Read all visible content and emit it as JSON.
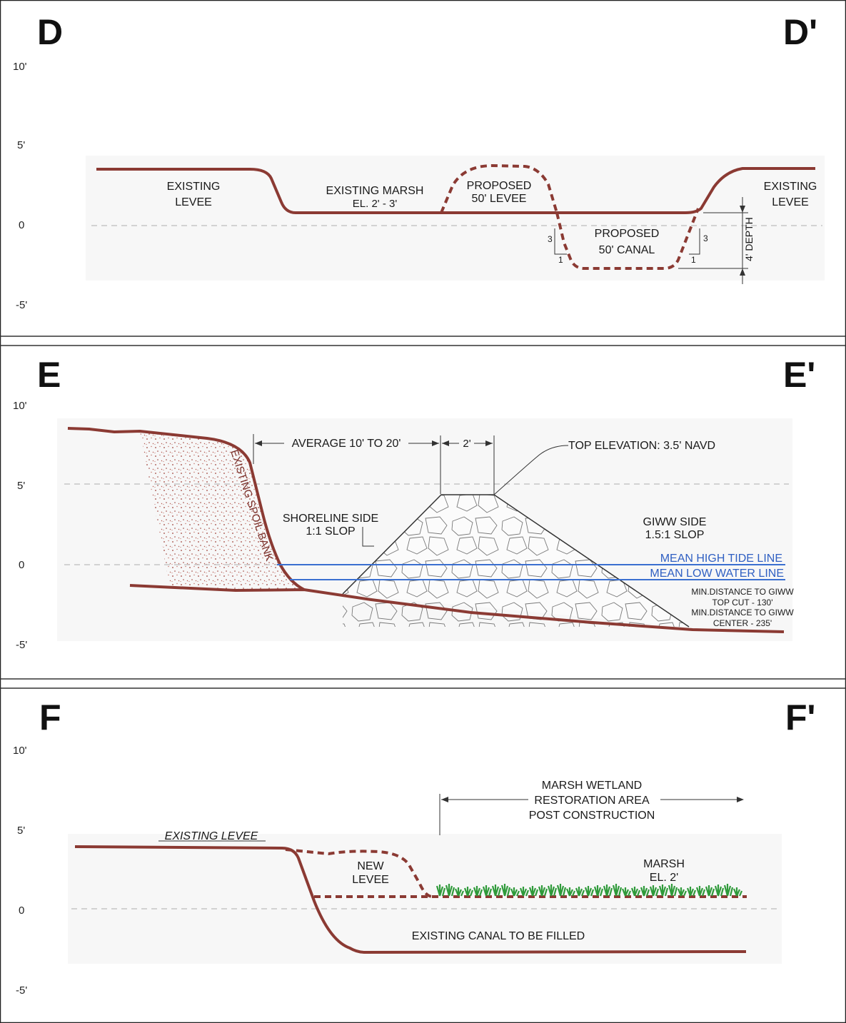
{
  "colors": {
    "profile": "#8b3a33",
    "water": "#3a6fd0",
    "datum": "#b9b9b9",
    "panel_bg": "#f7f7f7"
  },
  "axis_ticks": [
    "10'",
    "5'",
    "0",
    "-5'"
  ],
  "panel_d": {
    "label_left": "D",
    "label_right": "D'",
    "existing_levee_left": [
      "EXISTING",
      "LEVEE"
    ],
    "existing_marsh": [
      "EXISTING MARSH",
      "EL. 2' - 3'"
    ],
    "proposed_levee": [
      "PROPOSED",
      "50' LEVEE"
    ],
    "proposed_canal": [
      "PROPOSED",
      "50' CANAL"
    ],
    "existing_levee_right": [
      "EXISTING",
      "LEVEE"
    ],
    "slope_rise": "3",
    "slope_run": "1",
    "depth_label": "4' DEPTH"
  },
  "panel_e": {
    "label_left": "E",
    "label_right": "E'",
    "spoil_bank": "EXISTING SPOIL BANK",
    "average_width": "AVERAGE 10' TO 20'",
    "crest_width": "2'",
    "top_elevation": "TOP ELEVATION: 3.5' NAVD",
    "shoreline_side": [
      "SHORELINE SIDE",
      "1:1 SLOP"
    ],
    "giww_side": [
      "GIWW SIDE",
      "1.5:1 SLOP"
    ],
    "mean_high_tide": "MEAN HIGH TIDE LINE",
    "mean_low_water": "MEAN LOW WATER LINE",
    "min_distance_notes": [
      "MIN.DISTANCE TO GIWW",
      "TOP CUT - 130'",
      "MIN.DISTANCE TO GIWW",
      "CENTER - 235'"
    ]
  },
  "panel_f": {
    "label_left": "F",
    "label_right": "F'",
    "existing_levee": "EXISTING LEVEE",
    "new_levee": [
      "NEW",
      "LEVEE"
    ],
    "restoration_area": [
      "MARSH WETLAND",
      "RESTORATION AREA",
      "POST CONSTRUCTION"
    ],
    "marsh": [
      "MARSH",
      "EL. 2'"
    ],
    "canal_filled": "EXISTING CANAL TO BE FILLED"
  }
}
